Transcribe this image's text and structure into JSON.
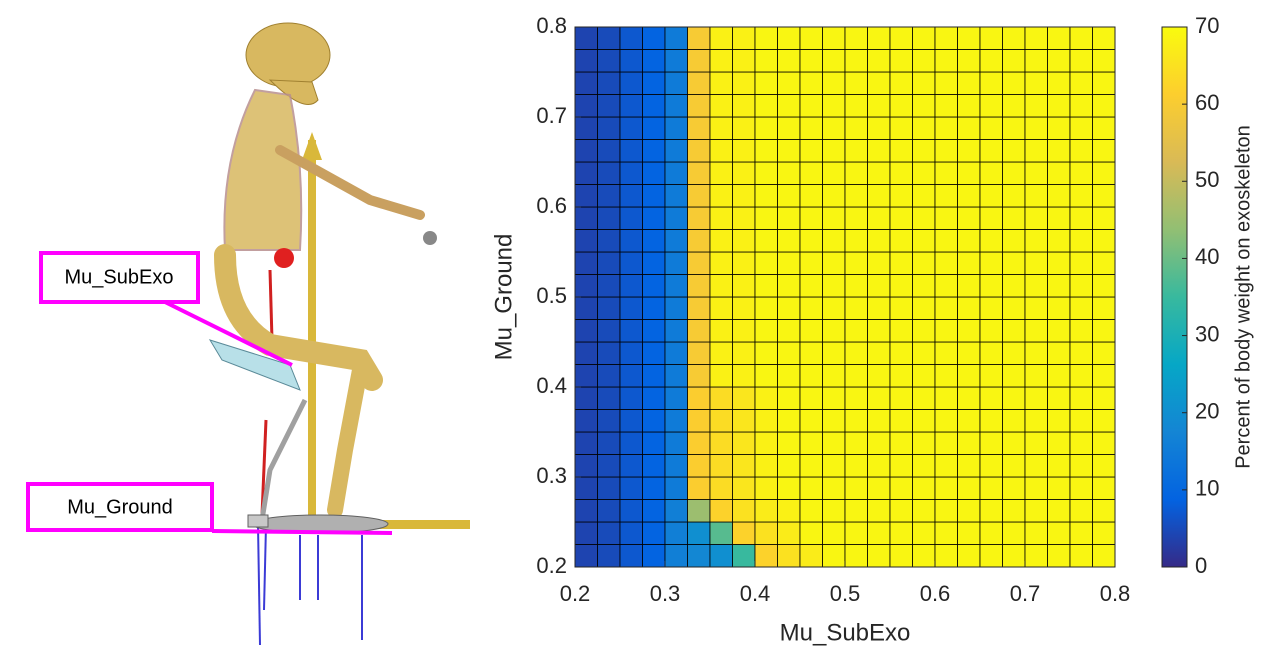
{
  "chart_data": {
    "type": "heatmap",
    "xlabel": "Mu_SubExo",
    "ylabel": "Mu_Ground",
    "colorbar_label": "Percent of body weight on exoskeleton",
    "colormap": "parula",
    "xlim": [
      0.2,
      0.8
    ],
    "ylim": [
      0.2,
      0.8
    ],
    "xticks": [
      0.2,
      0.3,
      0.4,
      0.5,
      0.6,
      0.7,
      0.8
    ],
    "yticks": [
      0.2,
      0.3,
      0.4,
      0.5,
      0.6,
      0.7,
      0.8
    ],
    "clim": [
      0,
      70
    ],
    "cticks": [
      0,
      10,
      20,
      30,
      40,
      50,
      60,
      70
    ],
    "annotations": [
      "Mu_SubExo",
      "Mu_Ground"
    ],
    "z": [
      [
        4,
        5,
        7,
        9,
        16,
        18,
        20,
        35,
        62,
        65,
        67,
        69,
        69,
        69,
        69,
        69,
        69,
        69,
        69,
        69,
        69,
        69,
        69,
        69
      ],
      [
        4,
        5,
        7,
        9,
        16,
        20,
        38,
        62,
        65,
        67,
        69,
        69,
        69,
        69,
        69,
        69,
        69,
        69,
        69,
        69,
        69,
        69,
        69,
        69
      ],
      [
        4,
        5,
        7,
        9,
        16,
        45,
        62,
        65,
        67,
        68,
        69,
        69,
        69,
        69,
        69,
        69,
        69,
        69,
        69,
        69,
        69,
        69,
        69,
        69
      ],
      [
        4,
        5,
        7,
        9,
        15,
        61,
        64,
        66,
        68,
        69,
        69,
        69,
        69,
        69,
        69,
        69,
        69,
        69,
        69,
        69,
        69,
        69,
        69,
        69
      ],
      [
        4,
        5,
        7,
        9,
        15,
        61,
        64,
        66,
        68,
        69,
        69,
        69,
        69,
        69,
        69,
        69,
        69,
        69,
        69,
        69,
        69,
        69,
        69,
        69
      ],
      [
        4,
        5,
        7,
        9,
        15,
        61,
        64,
        66,
        68,
        69,
        69,
        69,
        69,
        69,
        69,
        69,
        69,
        69,
        69,
        69,
        69,
        69,
        69,
        69
      ],
      [
        4,
        5,
        7,
        9,
        15,
        61,
        64,
        66,
        68,
        69,
        69,
        69,
        69,
        69,
        69,
        69,
        69,
        69,
        69,
        69,
        69,
        69,
        69,
        69
      ],
      [
        4,
        5,
        7,
        9,
        15,
        61,
        64,
        66,
        68,
        69,
        69,
        69,
        69,
        69,
        69,
        69,
        69,
        69,
        69,
        69,
        69,
        69,
        69,
        69
      ],
      [
        4,
        5,
        7,
        9,
        15,
        60,
        68,
        68,
        69,
        69,
        69,
        69,
        69,
        69,
        69,
        69,
        69,
        69,
        69,
        69,
        69,
        69,
        69,
        69
      ],
      [
        4,
        5,
        7,
        9,
        15,
        60,
        68,
        68,
        69,
        69,
        69,
        69,
        69,
        69,
        69,
        69,
        69,
        69,
        69,
        69,
        69,
        69,
        69,
        69
      ],
      [
        4,
        5,
        7,
        9,
        15,
        60,
        68,
        68,
        69,
        69,
        69,
        69,
        69,
        69,
        69,
        69,
        69,
        69,
        69,
        69,
        69,
        69,
        69,
        69
      ],
      [
        4,
        5,
        7,
        9,
        15,
        60,
        68,
        68,
        69,
        69,
        69,
        69,
        69,
        69,
        69,
        69,
        69,
        69,
        69,
        69,
        69,
        69,
        69,
        69
      ],
      [
        4,
        5,
        7,
        9,
        15,
        60,
        68,
        68,
        69,
        69,
        69,
        69,
        69,
        69,
        69,
        69,
        69,
        69,
        69,
        69,
        69,
        69,
        69,
        69
      ],
      [
        4,
        5,
        7,
        9,
        15,
        60,
        68,
        68,
        69,
        69,
        69,
        69,
        69,
        69,
        69,
        69,
        69,
        69,
        69,
        69,
        69,
        69,
        69,
        69
      ],
      [
        4,
        5,
        7,
        9,
        15,
        60,
        68,
        68,
        69,
        69,
        69,
        69,
        69,
        69,
        69,
        69,
        69,
        69,
        69,
        69,
        69,
        69,
        69,
        69
      ],
      [
        4,
        5,
        7,
        9,
        15,
        60,
        68,
        68,
        69,
        69,
        69,
        69,
        69,
        69,
        69,
        69,
        69,
        69,
        69,
        69,
        69,
        69,
        69,
        69
      ],
      [
        4,
        5,
        7,
        9,
        15,
        60,
        68,
        68,
        69,
        69,
        69,
        69,
        69,
        69,
        69,
        69,
        69,
        69,
        69,
        69,
        69,
        69,
        69,
        69
      ],
      [
        4,
        5,
        7,
        9,
        15,
        60,
        68,
        68,
        69,
        69,
        69,
        69,
        69,
        69,
        69,
        69,
        69,
        69,
        69,
        69,
        69,
        69,
        69,
        69
      ],
      [
        4,
        5,
        7,
        9,
        15,
        60,
        68,
        68,
        69,
        69,
        69,
        69,
        69,
        69,
        69,
        69,
        69,
        69,
        69,
        69,
        69,
        69,
        69,
        69
      ],
      [
        4,
        5,
        7,
        9,
        15,
        60,
        68,
        68,
        69,
        69,
        69,
        69,
        69,
        69,
        69,
        69,
        69,
        69,
        69,
        69,
        69,
        69,
        69,
        69
      ],
      [
        4,
        5,
        7,
        9,
        15,
        60,
        68,
        68,
        69,
        69,
        69,
        69,
        69,
        69,
        69,
        69,
        69,
        69,
        69,
        69,
        69,
        69,
        69,
        69
      ],
      [
        4,
        5,
        7,
        9,
        15,
        60,
        68,
        68,
        69,
        69,
        69,
        69,
        69,
        69,
        69,
        69,
        69,
        69,
        69,
        69,
        69,
        69,
        69,
        69
      ],
      [
        4,
        5,
        7,
        9,
        15,
        60,
        68,
        68,
        69,
        69,
        69,
        69,
        69,
        69,
        69,
        69,
        69,
        69,
        69,
        69,
        69,
        69,
        69,
        69
      ],
      [
        4,
        5,
        7,
        9,
        15,
        60,
        68,
        68,
        69,
        69,
        69,
        69,
        69,
        69,
        69,
        69,
        69,
        69,
        69,
        69,
        69,
        69,
        69,
        69
      ]
    ]
  }
}
